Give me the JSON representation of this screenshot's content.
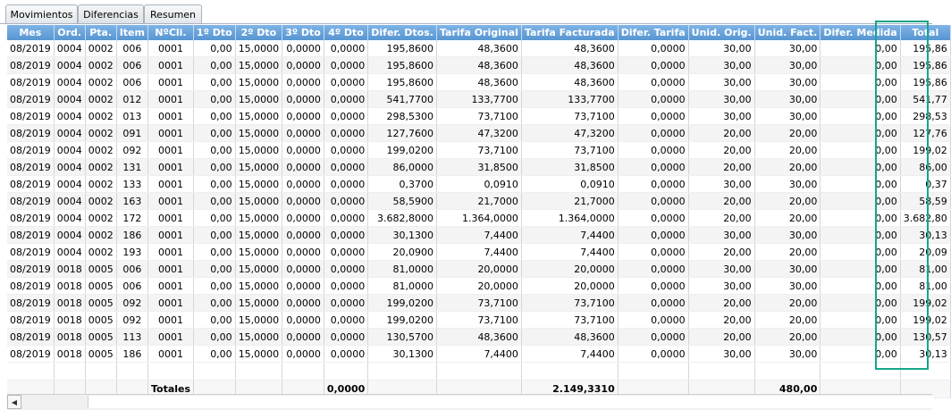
{
  "tabs": [
    {
      "label": "Movimientos"
    },
    {
      "label": "Diferencias"
    },
    {
      "label": "Resumen"
    }
  ],
  "columns": [
    "Mes",
    "Ord.",
    "Pta.",
    "Item",
    "NºCli.",
    "1º Dto",
    "2º Dto",
    "3º Dto",
    "4º Dto",
    "Difer. Dtos.",
    "Tarifa Original",
    "Tarifa Facturada",
    "Difer. Tarifa",
    "Unid. Orig.",
    "Unid. Fact.",
    "Difer. Medida",
    "Total"
  ],
  "rows": [
    [
      "08/2019",
      "0004",
      "0002",
      "006",
      "0001",
      "0,00",
      "15,0000",
      "0,0000",
      "0,0000",
      "195,8600",
      "48,3600",
      "48,3600",
      "0,0000",
      "30,00",
      "30,00",
      "0,00",
      "195,86"
    ],
    [
      "08/2019",
      "0004",
      "0002",
      "006",
      "0001",
      "0,00",
      "15,0000",
      "0,0000",
      "0,0000",
      "195,8600",
      "48,3600",
      "48,3600",
      "0,0000",
      "30,00",
      "30,00",
      "0,00",
      "195,86"
    ],
    [
      "08/2019",
      "0004",
      "0002",
      "006",
      "0001",
      "0,00",
      "15,0000",
      "0,0000",
      "0,0000",
      "195,8600",
      "48,3600",
      "48,3600",
      "0,0000",
      "30,00",
      "30,00",
      "0,00",
      "195,86"
    ],
    [
      "08/2019",
      "0004",
      "0002",
      "012",
      "0001",
      "0,00",
      "15,0000",
      "0,0000",
      "0,0000",
      "541,7700",
      "133,7700",
      "133,7700",
      "0,0000",
      "30,00",
      "30,00",
      "0,00",
      "541,77"
    ],
    [
      "08/2019",
      "0004",
      "0002",
      "013",
      "0001",
      "0,00",
      "15,0000",
      "0,0000",
      "0,0000",
      "298,5300",
      "73,7100",
      "73,7100",
      "0,0000",
      "30,00",
      "30,00",
      "0,00",
      "298,53"
    ],
    [
      "08/2019",
      "0004",
      "0002",
      "091",
      "0001",
      "0,00",
      "15,0000",
      "0,0000",
      "0,0000",
      "127,7600",
      "47,3200",
      "47,3200",
      "0,0000",
      "20,00",
      "20,00",
      "0,00",
      "127,76"
    ],
    [
      "08/2019",
      "0004",
      "0002",
      "092",
      "0001",
      "0,00",
      "15,0000",
      "0,0000",
      "0,0000",
      "199,0200",
      "73,7100",
      "73,7100",
      "0,0000",
      "20,00",
      "20,00",
      "0,00",
      "199,02"
    ],
    [
      "08/2019",
      "0004",
      "0002",
      "131",
      "0001",
      "0,00",
      "15,0000",
      "0,0000",
      "0,0000",
      "86,0000",
      "31,8500",
      "31,8500",
      "0,0000",
      "20,00",
      "20,00",
      "0,00",
      "86,00"
    ],
    [
      "08/2019",
      "0004",
      "0002",
      "133",
      "0001",
      "0,00",
      "15,0000",
      "0,0000",
      "0,0000",
      "0,3700",
      "0,0910",
      "0,0910",
      "0,0000",
      "30,00",
      "30,00",
      "0,00",
      "0,37"
    ],
    [
      "08/2019",
      "0004",
      "0002",
      "163",
      "0001",
      "0,00",
      "15,0000",
      "0,0000",
      "0,0000",
      "58,5900",
      "21,7000",
      "21,7000",
      "0,0000",
      "20,00",
      "20,00",
      "0,00",
      "58,59"
    ],
    [
      "08/2019",
      "0004",
      "0002",
      "172",
      "0001",
      "0,00",
      "15,0000",
      "0,0000",
      "0,0000",
      "3.682,8000",
      "1.364,0000",
      "1.364,0000",
      "0,0000",
      "20,00",
      "20,00",
      "0,00",
      "3.682,80"
    ],
    [
      "08/2019",
      "0004",
      "0002",
      "186",
      "0001",
      "0,00",
      "15,0000",
      "0,0000",
      "0,0000",
      "30,1300",
      "7,4400",
      "7,4400",
      "0,0000",
      "30,00",
      "30,00",
      "0,00",
      "30,13"
    ],
    [
      "08/2019",
      "0004",
      "0002",
      "193",
      "0001",
      "0,00",
      "15,0000",
      "0,0000",
      "0,0000",
      "20,0900",
      "7,4400",
      "7,4400",
      "0,0000",
      "20,00",
      "20,00",
      "0,00",
      "20,09"
    ],
    [
      "08/2019",
      "0018",
      "0005",
      "006",
      "0001",
      "0,00",
      "15,0000",
      "0,0000",
      "0,0000",
      "81,0000",
      "20,0000",
      "20,0000",
      "0,0000",
      "30,00",
      "30,00",
      "0,00",
      "81,00"
    ],
    [
      "08/2019",
      "0018",
      "0005",
      "006",
      "0001",
      "0,00",
      "15,0000",
      "0,0000",
      "0,0000",
      "81,0000",
      "20,0000",
      "20,0000",
      "0,0000",
      "30,00",
      "30,00",
      "0,00",
      "81,00"
    ],
    [
      "08/2019",
      "0018",
      "0005",
      "092",
      "0001",
      "0,00",
      "15,0000",
      "0,0000",
      "0,0000",
      "199,0200",
      "73,7100",
      "73,7100",
      "0,0000",
      "20,00",
      "20,00",
      "0,00",
      "199,02"
    ],
    [
      "08/2019",
      "0018",
      "0005",
      "092",
      "0001",
      "0,00",
      "15,0000",
      "0,0000",
      "0,0000",
      "199,0200",
      "73,7100",
      "73,7100",
      "0,0000",
      "20,00",
      "20,00",
      "0,00",
      "199,02"
    ],
    [
      "08/2019",
      "0018",
      "0005",
      "113",
      "0001",
      "0,00",
      "15,0000",
      "0,0000",
      "0,0000",
      "130,5700",
      "48,3600",
      "48,3600",
      "0,0000",
      "20,00",
      "20,00",
      "0,00",
      "130,57"
    ],
    [
      "08/2019",
      "0018",
      "0005",
      "186",
      "0001",
      "0,00",
      "15,0000",
      "0,0000",
      "0,0000",
      "30,1300",
      "7,4400",
      "7,4400",
      "0,0000",
      "30,00",
      "30,00",
      "0,00",
      "30,13"
    ]
  ],
  "totals": {
    "label": "Totales",
    "dto4": "0,0000",
    "tarifa_facturada": "2.149,3310",
    "unid_fact": "480,00"
  },
  "scroll_left_icon": "◀",
  "colors": {
    "header": "#5f9bd6",
    "highlight": "#17a589"
  }
}
